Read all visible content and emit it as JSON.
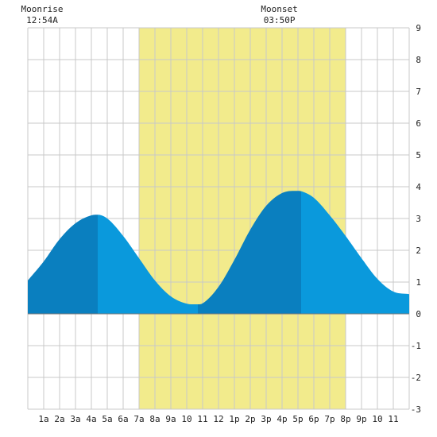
{
  "chart_data": {
    "type": "area",
    "annotations": {
      "moonrise": {
        "label": "Moonrise",
        "time": "12:54A",
        "x": 0.9
      },
      "moonset": {
        "label": "Moonset",
        "time": "03:50P",
        "x": 15.83
      }
    },
    "daylight": {
      "start": 7.0,
      "end": 20.0
    },
    "x_ticks": [
      "1a",
      "2a",
      "3a",
      "4a",
      "5a",
      "6a",
      "7a",
      "8a",
      "9a",
      "10",
      "11",
      "12",
      "1p",
      "2p",
      "3p",
      "4p",
      "5p",
      "6p",
      "7p",
      "8p",
      "9p",
      "10",
      "11"
    ],
    "y_ticks": [
      "9",
      "8",
      "7",
      "6",
      "5",
      "4",
      "3",
      "2",
      "1",
      "0",
      "-1",
      "-2",
      "-3"
    ],
    "xlim": [
      0,
      24
    ],
    "ylim": [
      -3,
      9
    ],
    "grid": true,
    "series": [
      {
        "x": [
          0,
          1,
          2,
          3,
          4,
          4.4,
          5,
          6,
          7,
          8,
          9,
          10,
          10.7,
          11,
          12,
          13,
          14,
          15,
          16,
          17,
          17.2,
          18,
          19,
          20,
          21,
          22,
          23,
          24
        ],
        "values": [
          1.05,
          1.65,
          2.35,
          2.85,
          3.1,
          3.12,
          3.0,
          2.45,
          1.75,
          1.05,
          0.55,
          0.32,
          0.3,
          0.33,
          0.85,
          1.7,
          2.65,
          3.4,
          3.8,
          3.87,
          3.86,
          3.65,
          3.1,
          2.45,
          1.75,
          1.1,
          0.7,
          0.62
        ]
      }
    ],
    "extrema_x": [
      4.4,
      10.7,
      17.2
    ],
    "colors": {
      "daylight": "#f2eb8c",
      "grid": "#c8c8c8",
      "tide_rising": "#0a7fbf",
      "tide_falling": "#0a99dc",
      "axis": "#444444",
      "text": "#222222"
    }
  }
}
